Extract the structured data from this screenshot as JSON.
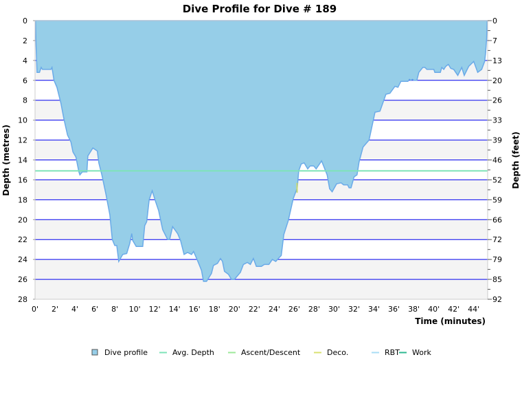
{
  "chart_data": {
    "type": "area",
    "title": "Dive Profile for Dive # 189",
    "xlabel": "Time (minutes)",
    "ylabel": "Depth (metres)",
    "ylabel_right": "Depth (feet)",
    "xlim": [
      0,
      45.4
    ],
    "ylim": [
      0,
      28
    ],
    "y_inverted": true,
    "grid": true,
    "legend_position": "bottom",
    "x_ticks": [
      "0'",
      "2'",
      "4'",
      "6'",
      "8'",
      "10'",
      "12'",
      "14'",
      "16'",
      "18'",
      "20'",
      "22'",
      "24'",
      "26'",
      "28'",
      "30'",
      "32'",
      "34'",
      "36'",
      "38'",
      "40'",
      "42'",
      "44'"
    ],
    "y_ticks": [
      "0",
      "2",
      "4",
      "6",
      "8",
      "10",
      "12",
      "14",
      "16",
      "18",
      "20",
      "22",
      "24",
      "26",
      "28"
    ],
    "y_ticks_right": [
      "0",
      "7",
      "13",
      "20",
      "26",
      "33",
      "39",
      "46",
      "52",
      "59",
      "66",
      "72",
      "79",
      "85",
      "92"
    ],
    "avg_depth": 15.1,
    "legend": [
      {
        "name": "Dive profile",
        "color": "#96CEE8",
        "marker": "square"
      },
      {
        "name": "Avg. Depth",
        "color": "#7EE3B8",
        "marker": "line"
      },
      {
        "name": "Ascent/Descent",
        "color": "#9DE89A",
        "marker": "line"
      },
      {
        "name": "Deco.",
        "color": "#D8E070",
        "marker": "line"
      },
      {
        "name": "RBT",
        "color": "#A8DDF5",
        "marker": "line"
      },
      {
        "name": "Work",
        "color": "#2EB890",
        "marker": "line"
      }
    ],
    "colors": {
      "fill": "#96CEE8",
      "stroke": "#6AAAE8",
      "grid": "#0000EE",
      "band": "#F4F4F4",
      "avg": "#7EE3B8",
      "deco": "#C8D870"
    },
    "series": [
      {
        "name": "Dive profile",
        "x": [
          0,
          0.05,
          0.1,
          0.2,
          0.45,
          0.62,
          0.74,
          1.6,
          1.7,
          1.9,
          2.2,
          2.6,
          2.9,
          3.26,
          3.6,
          3.8,
          4.1,
          4.4,
          4.5,
          4.75,
          5.2,
          5.3,
          5.8,
          6.25,
          6.4,
          6.7,
          7.1,
          7.5,
          7.75,
          8.0,
          8.2,
          8.4,
          8.8,
          9.2,
          9.5,
          9.7,
          9.8,
          10.15,
          10.8,
          11.0,
          11.2,
          11.45,
          11.75,
          12.1,
          12.4,
          12.8,
          13.3,
          13.5,
          13.8,
          14.3,
          14.6,
          14.95,
          15.3,
          15.7,
          15.9,
          16.25,
          16.7,
          16.9,
          17.2,
          17.7,
          17.9,
          18.3,
          18.6,
          18.8,
          19.0,
          19.4,
          19.7,
          20.0,
          20.6,
          20.9,
          21.3,
          21.6,
          21.9,
          22.2,
          22.7,
          23.0,
          23.46,
          23.8,
          24.15,
          24.4,
          24.7,
          24.95,
          25.4,
          25.9,
          26.3,
          26.45,
          26.7,
          27.0,
          27.35,
          27.6,
          27.95,
          28.2,
          28.74,
          29.3,
          29.55,
          29.8,
          30.25,
          30.7,
          30.95,
          31.35,
          31.5,
          31.7,
          32.0,
          32.3,
          32.5,
          32.9,
          33.5,
          34.1,
          34.6,
          35.2,
          35.6,
          36.1,
          36.4,
          36.7,
          37.4,
          37.55,
          37.7,
          37.85,
          38.0,
          38.3,
          38.5,
          38.9,
          39.1,
          39.3,
          40.0,
          40.1,
          40.65,
          40.8,
          41.0,
          41.2,
          41.45,
          41.7,
          42.0,
          42.4,
          42.8,
          43.05,
          43.5,
          44.0,
          44.4,
          44.8,
          45.1,
          45.2,
          45.3,
          45.35
        ],
        "y": [
          0,
          0,
          2.5,
          5.2,
          5.2,
          4.7,
          4.9,
          4.9,
          4.7,
          6.0,
          6.7,
          8.3,
          9.9,
          11.5,
          12.2,
          13.2,
          13.7,
          15.2,
          15.5,
          15.2,
          15.2,
          13.6,
          12.8,
          13.1,
          14.3,
          15.5,
          17.4,
          19.5,
          22,
          22.6,
          22.6,
          24.2,
          23.5,
          23.4,
          22.4,
          21.4,
          22.1,
          22.7,
          22.7,
          20.6,
          20.2,
          18,
          17.1,
          18.2,
          19.1,
          21,
          22.0,
          22.0,
          20.7,
          21.4,
          22.1,
          23.5,
          23.3,
          23.5,
          23.2,
          24,
          25.1,
          26.2,
          26.2,
          25.4,
          24.6,
          24.4,
          23.9,
          24.2,
          25.2,
          25.5,
          26.0,
          26.0,
          25.3,
          24.5,
          24.3,
          24.5,
          23.9,
          24.7,
          24.7,
          24.5,
          24.5,
          24.0,
          24.2,
          23.9,
          23.6,
          21.5,
          20.1,
          17.9,
          16.8,
          15.1,
          14.4,
          14.3,
          14.9,
          14.6,
          14.6,
          14.9,
          14.1,
          15.5,
          16.9,
          17.2,
          16.4,
          16.3,
          16.5,
          16.5,
          16.8,
          16.8,
          15.7,
          15.5,
          14.2,
          12.7,
          12.0,
          9.2,
          9.1,
          7.4,
          7.3,
          6.6,
          6.7,
          6.1,
          6.1,
          5.9,
          6.0,
          5.9,
          6.0,
          6.0,
          5.2,
          4.7,
          4.7,
          4.9,
          4.9,
          5.2,
          5.2,
          4.7,
          4.9,
          4.6,
          4.4,
          4.8,
          4.9,
          5.5,
          4.7,
          5.5,
          4.6,
          4.1,
          5.2,
          4.9,
          4.1,
          3.2,
          1.8,
          0
        ]
      }
    ]
  }
}
